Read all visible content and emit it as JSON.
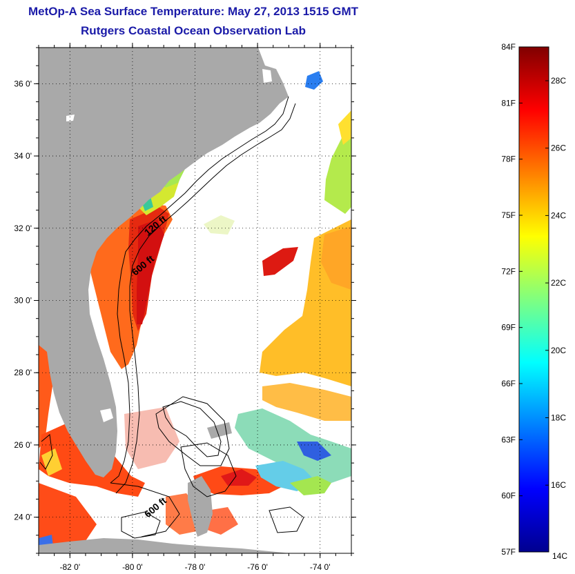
{
  "header": {
    "title": "MetOp-A Sea Surface Temperature:  May 27, 2013 1515 GMT",
    "subtitle": "Rutgers Coastal Ocean Observation Lab"
  },
  "map": {
    "lon_range": [
      -83.0,
      -73.0
    ],
    "lat_range": [
      23.0,
      37.0
    ],
    "lon_ticks": [
      {
        "value": -82,
        "label": "-82 0'"
      },
      {
        "value": -80,
        "label": "-80 0'"
      },
      {
        "value": -78,
        "label": "-78 0'"
      },
      {
        "value": -76,
        "label": "-76 0'"
      },
      {
        "value": -74,
        "label": "-74 0'"
      }
    ],
    "lat_ticks": [
      {
        "value": 24,
        "label": "24 0'"
      },
      {
        "value": 26,
        "label": "26 0'"
      },
      {
        "value": 28,
        "label": "28 0'"
      },
      {
        "value": 30,
        "label": "30 0'"
      },
      {
        "value": 32,
        "label": "32 0'"
      },
      {
        "value": 34,
        "label": "34 0'"
      },
      {
        "value": 36,
        "label": "36 0'"
      }
    ],
    "contour_labels": [
      {
        "text": "120 ft",
        "lon": -79.2,
        "lat": 32.0
      },
      {
        "text": "600 ft",
        "lon": -79.6,
        "lat": 30.9
      },
      {
        "text": "600 ft",
        "lon": -79.2,
        "lat": 24.2
      }
    ],
    "land_color": "#a9a9a9",
    "grid": "dotted"
  },
  "colorbar": {
    "fahrenheit_labels": [
      "84F",
      "81F",
      "78F",
      "75F",
      "72F",
      "69F",
      "66F",
      "63F",
      "60F",
      "57F"
    ],
    "celsius_labels": [
      "28C",
      "26C",
      "24C",
      "22C",
      "20C",
      "18C",
      "16C",
      "14C"
    ],
    "colormap": "jet"
  }
}
